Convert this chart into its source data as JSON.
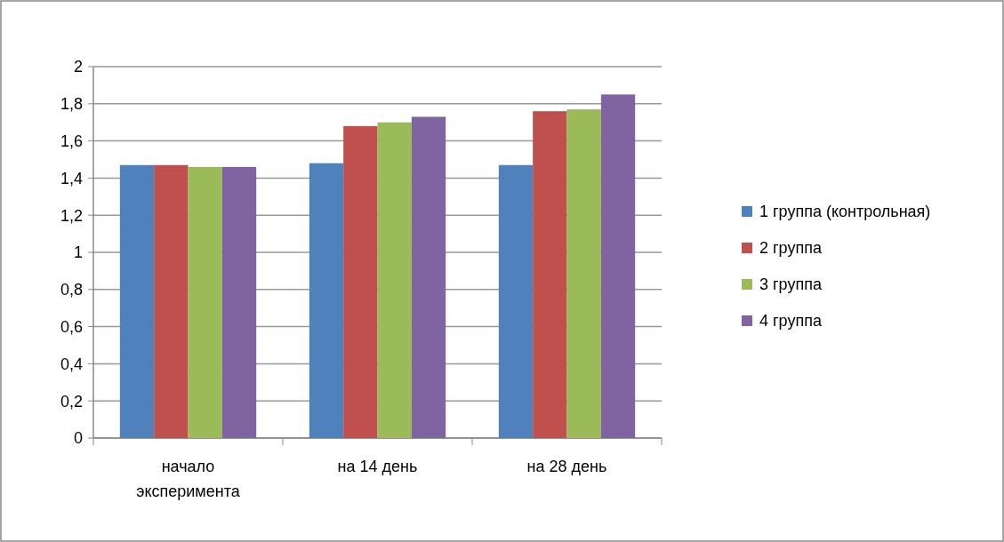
{
  "chart_data": {
    "type": "bar",
    "categories": [
      "начало эксперимента",
      "на 14 день",
      "на 28 день"
    ],
    "series": [
      {
        "name": "1 группа (контрольная)",
        "color": "#4f81bd",
        "values": [
          1.47,
          1.48,
          1.47
        ]
      },
      {
        "name": "2 группа",
        "color": "#c0504d",
        "values": [
          1.47,
          1.68,
          1.76
        ]
      },
      {
        "name": "3 группа",
        "color": "#9bbb59",
        "values": [
          1.46,
          1.7,
          1.77
        ]
      },
      {
        "name": "4 группа",
        "color": "#8064a2",
        "values": [
          1.46,
          1.73,
          1.85
        ]
      }
    ],
    "ylim": [
      0,
      2
    ],
    "yticks": [
      0,
      {
        "value": 0.2,
        "label": "0,2"
      },
      {
        "value": 0.4,
        "label": "0,4"
      },
      {
        "value": 0.6,
        "label": "0,6"
      },
      {
        "value": 0.8,
        "label": "0,8"
      },
      1,
      {
        "value": 1.2,
        "label": "1,2"
      },
      {
        "value": 1.4,
        "label": "1,4"
      },
      {
        "value": 1.6,
        "label": "1,6"
      },
      {
        "value": 1.8,
        "label": "1,8"
      },
      2
    ],
    "grid": "y",
    "legend": "right"
  }
}
